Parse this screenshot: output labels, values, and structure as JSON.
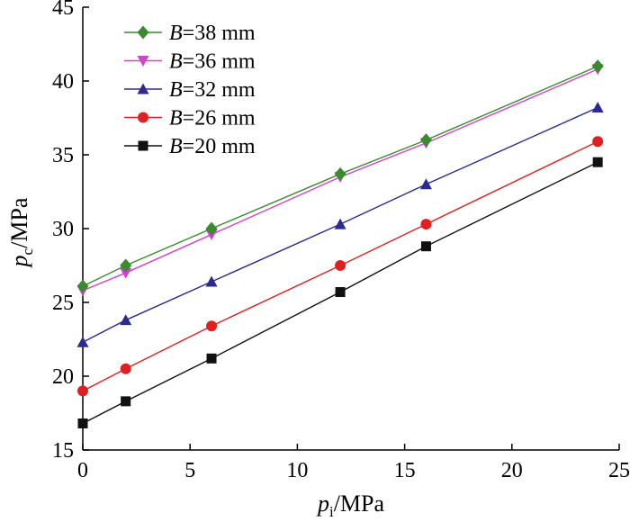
{
  "chart_data": {
    "type": "line",
    "xlabel": {
      "var": "p",
      "sub": "i",
      "unit": "/MPa"
    },
    "ylabel": {
      "var": "p",
      "sub": "c",
      "unit": "/MPa"
    },
    "xlim": [
      0,
      25
    ],
    "ylim": [
      15,
      45
    ],
    "xticks": [
      0,
      5,
      10,
      15,
      20,
      25
    ],
    "yticks": [
      15,
      20,
      25,
      30,
      35,
      40,
      45
    ],
    "grid": false,
    "legend_position": "top-left",
    "x": [
      0,
      2,
      6,
      12,
      16,
      24
    ],
    "series": [
      {
        "name": "B=38 mm",
        "var": "B",
        "label_rest": "=38 mm",
        "color": "#3a8a2e",
        "marker": "diamond",
        "values": [
          26.1,
          27.5,
          30.0,
          33.7,
          36.0,
          41.0
        ]
      },
      {
        "name": "B=36 mm",
        "var": "B",
        "label_rest": "=36 mm",
        "color": "#d63fd1",
        "marker": "triangle-down",
        "values": [
          25.8,
          27.0,
          29.6,
          33.5,
          35.8,
          40.8
        ]
      },
      {
        "name": "B=32 mm",
        "var": "B",
        "label_rest": "=32 mm",
        "color": "#2b2b8f",
        "marker": "triangle-up",
        "values": [
          22.3,
          23.8,
          26.4,
          30.3,
          33.0,
          38.2
        ]
      },
      {
        "name": "B=26 mm",
        "var": "B",
        "label_rest": "=26 mm",
        "color": "#e02020",
        "marker": "circle",
        "values": [
          19.0,
          20.5,
          23.4,
          27.5,
          30.3,
          35.9
        ]
      },
      {
        "name": "B=20 mm",
        "var": "B",
        "label_rest": "=20 mm",
        "color": "#111111",
        "marker": "square",
        "values": [
          16.8,
          18.3,
          21.2,
          25.7,
          28.8,
          34.5
        ]
      }
    ]
  }
}
